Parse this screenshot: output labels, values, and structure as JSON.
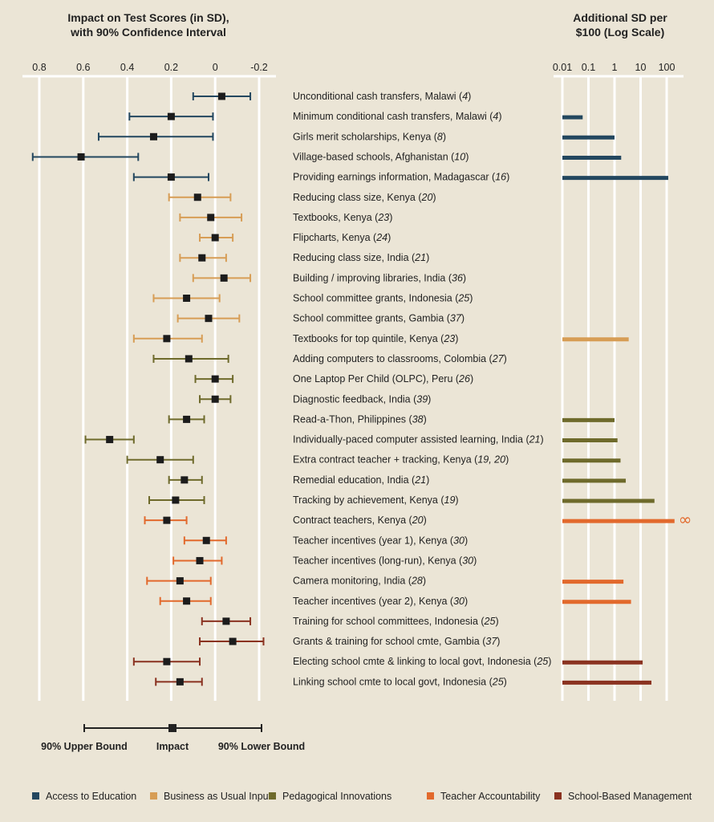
{
  "chart_data": [
    {
      "type": "forest",
      "title_lines": [
        "Impact on Test Scores (in SD),",
        "with 90% Confidence Interval"
      ],
      "axis": {
        "reversed": true,
        "xlim": [
          0.8,
          -0.2
        ],
        "ticks": [
          "0.8",
          "0.6",
          "0.4",
          "0.2",
          "0",
          "-0.2"
        ],
        "tick_values": [
          0.8,
          0.6,
          0.4,
          0.2,
          0,
          -0.2
        ]
      },
      "key": {
        "upper_label": "90% Upper Bound",
        "impact_label": "Impact",
        "lower_label": "90% Lower Bound"
      }
    },
    {
      "type": "bar",
      "title_lines": [
        "Additional SD per",
        "$100 (Log Scale)"
      ],
      "axis": {
        "scale": "log",
        "xlim": [
          0.01,
          200
        ],
        "ticks": [
          "0.01",
          "0.1",
          "1",
          "10",
          "100"
        ],
        "tick_values": [
          0.01,
          0.1,
          1,
          10,
          100
        ]
      },
      "infinity_symbol": "∞"
    }
  ],
  "categories": [
    {
      "name": "Access to Education",
      "color": "#23475f"
    },
    {
      "name": "Business as Usual Inputs",
      "color": "#d79d55"
    },
    {
      "name": "Pedagogical Innovations",
      "color": "#6e6a2b"
    },
    {
      "name": "Teacher Accountability",
      "color": "#e2692c"
    },
    {
      "name": "School-Based Management",
      "color": "#8a3220"
    }
  ],
  "programs": [
    {
      "label": "Unconditional cash transfers, Malawi",
      "ref": "4",
      "cat": 0,
      "impact": -0.03,
      "upper": 0.1,
      "lower": -0.16,
      "cost_effect": null
    },
    {
      "label": "Minimum conditional cash transfers, Malawi",
      "ref": "4",
      "cat": 0,
      "impact": 0.2,
      "upper": 0.39,
      "lower": 0.01,
      "cost_effect": 0.06
    },
    {
      "label": "Girls merit scholarships, Kenya",
      "ref": "8",
      "cat": 0,
      "impact": 0.28,
      "upper": 0.53,
      "lower": 0.01,
      "cost_effect": 1.0
    },
    {
      "label": "Village-based schools, Afghanistan",
      "ref": "10",
      "cat": 0,
      "impact": 0.61,
      "upper": 0.83,
      "lower": 0.35,
      "cost_effect": 1.8
    },
    {
      "label": "Providing earnings information, Madagascar",
      "ref": "16",
      "cat": 0,
      "impact": 0.2,
      "upper": 0.37,
      "lower": 0.03,
      "cost_effect": 115
    },
    {
      "label": "Reducing class size, Kenya",
      "ref": "20",
      "cat": 1,
      "impact": 0.08,
      "upper": 0.21,
      "lower": -0.07,
      "cost_effect": null
    },
    {
      "label": "Textbooks, Kenya",
      "ref": "23",
      "cat": 1,
      "impact": 0.02,
      "upper": 0.16,
      "lower": -0.12,
      "cost_effect": null
    },
    {
      "label": "Flipcharts, Kenya",
      "ref": "24",
      "cat": 1,
      "impact": 0.0,
      "upper": 0.07,
      "lower": -0.08,
      "cost_effect": null
    },
    {
      "label": "Reducing class size, India",
      "ref": "21",
      "cat": 1,
      "impact": 0.06,
      "upper": 0.16,
      "lower": -0.05,
      "cost_effect": null
    },
    {
      "label": "Building / improving libraries, India",
      "ref": "36",
      "cat": 1,
      "impact": -0.04,
      "upper": 0.1,
      "lower": -0.16,
      "cost_effect": null
    },
    {
      "label": "School committee grants, Indonesia",
      "ref": "25",
      "cat": 1,
      "impact": 0.13,
      "upper": 0.28,
      "lower": -0.02,
      "cost_effect": null
    },
    {
      "label": "School committee grants, Gambia",
      "ref": "37",
      "cat": 1,
      "impact": 0.03,
      "upper": 0.17,
      "lower": -0.11,
      "cost_effect": null
    },
    {
      "label": "Textbooks for top quintile, Kenya",
      "ref": "23",
      "cat": 1,
      "impact": 0.22,
      "upper": 0.37,
      "lower": 0.06,
      "cost_effect": 3.5
    },
    {
      "label": "Adding computers to classrooms, Colombia",
      "ref": "27",
      "cat": 2,
      "impact": 0.12,
      "upper": 0.28,
      "lower": -0.06,
      "cost_effect": null
    },
    {
      "label": "One Laptop Per Child (OLPC), Peru",
      "ref": "26",
      "cat": 2,
      "impact": 0.0,
      "upper": 0.09,
      "lower": -0.08,
      "cost_effect": null
    },
    {
      "label": "Diagnostic feedback, India",
      "ref": "39",
      "cat": 2,
      "impact": 0.0,
      "upper": 0.07,
      "lower": -0.07,
      "cost_effect": null
    },
    {
      "label": "Read-a-Thon, Philippines",
      "ref": "38",
      "cat": 2,
      "impact": 0.13,
      "upper": 0.21,
      "lower": 0.05,
      "cost_effect": 1.0
    },
    {
      "label": "Individually-paced computer assisted learning, India",
      "ref": "21",
      "cat": 2,
      "impact": 0.48,
      "upper": 0.59,
      "lower": 0.37,
      "cost_effect": 1.3
    },
    {
      "label": "Extra contract teacher + tracking, Kenya",
      "ref": "19, 20",
      "cat": 2,
      "impact": 0.25,
      "upper": 0.4,
      "lower": 0.1,
      "cost_effect": 1.7
    },
    {
      "label": "Remedial education, India",
      "ref": "21",
      "cat": 2,
      "impact": 0.14,
      "upper": 0.21,
      "lower": 0.06,
      "cost_effect": 2.7
    },
    {
      "label": "Tracking by achievement, Kenya",
      "ref": "19",
      "cat": 2,
      "impact": 0.18,
      "upper": 0.3,
      "lower": 0.05,
      "cost_effect": 34
    },
    {
      "label": "Contract teachers, Kenya",
      "ref": "20",
      "cat": 3,
      "impact": 0.22,
      "upper": 0.32,
      "lower": 0.13,
      "cost_effect": "infinite"
    },
    {
      "label": "Teacher incentives (year 1), Kenya",
      "ref": "30",
      "cat": 3,
      "impact": 0.04,
      "upper": 0.14,
      "lower": -0.05,
      "cost_effect": null
    },
    {
      "label": "Teacher incentives (long-run), Kenya",
      "ref": "30",
      "cat": 3,
      "impact": 0.07,
      "upper": 0.19,
      "lower": -0.03,
      "cost_effect": null
    },
    {
      "label": "Camera monitoring, India",
      "ref": "28",
      "cat": 3,
      "impact": 0.16,
      "upper": 0.31,
      "lower": 0.02,
      "cost_effect": 2.2
    },
    {
      "label": "Teacher incentives (year 2), Kenya",
      "ref": "30",
      "cat": 3,
      "impact": 0.13,
      "upper": 0.25,
      "lower": 0.02,
      "cost_effect": 4.3
    },
    {
      "label": "Training for school committees, Indonesia",
      "ref": "25",
      "cat": 4,
      "impact": -0.05,
      "upper": 0.06,
      "lower": -0.16,
      "cost_effect": null
    },
    {
      "label": "Grants & training for school cmte, Gambia",
      "ref": "37",
      "cat": 4,
      "impact": -0.08,
      "upper": 0.07,
      "lower": -0.22,
      "cost_effect": null
    },
    {
      "label": "Electing school cmte & linking to local govt, Indonesia",
      "ref": "25",
      "cat": 4,
      "impact": 0.22,
      "upper": 0.37,
      "lower": 0.07,
      "cost_effect": 12
    },
    {
      "label": "Linking school cmte to local govt, Indonesia",
      "ref": "25",
      "cat": 4,
      "impact": 0.16,
      "upper": 0.27,
      "lower": 0.06,
      "cost_effect": 26
    }
  ]
}
